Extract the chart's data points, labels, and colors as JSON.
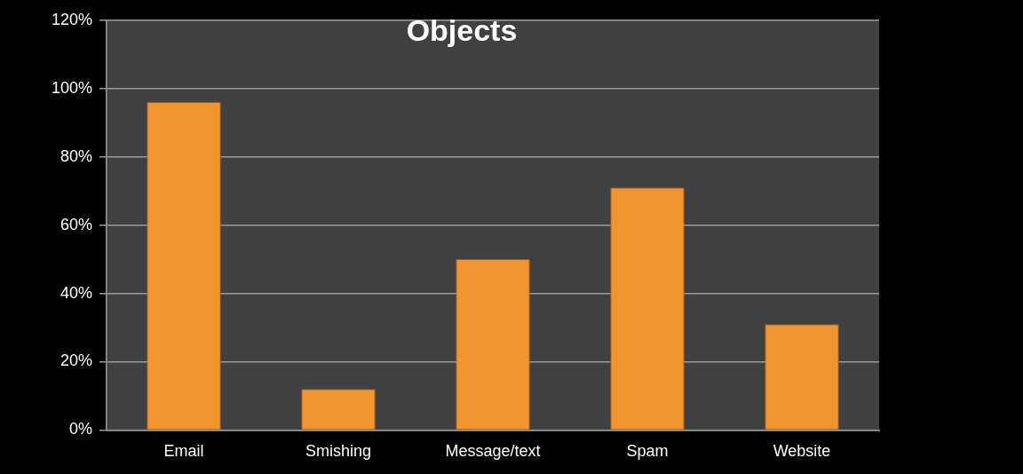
{
  "chart_data": {
    "type": "bar",
    "title": "Objects",
    "categories": [
      "Email",
      "Smishing",
      "Message/text",
      "Spam",
      "Website"
    ],
    "values": [
      96,
      12,
      50,
      71,
      31
    ],
    "color": "#f29530",
    "ylim": [
      0,
      120
    ],
    "yticks": [
      {
        "value": 0,
        "label": "0%"
      },
      {
        "value": 20,
        "label": "20%"
      },
      {
        "value": 40,
        "label": "40%"
      },
      {
        "value": 60,
        "label": "60%"
      },
      {
        "value": 80,
        "label": "80%"
      },
      {
        "value": 100,
        "label": "100%"
      },
      {
        "value": 120,
        "label": "120%"
      }
    ],
    "grid": "y",
    "legend": false
  }
}
